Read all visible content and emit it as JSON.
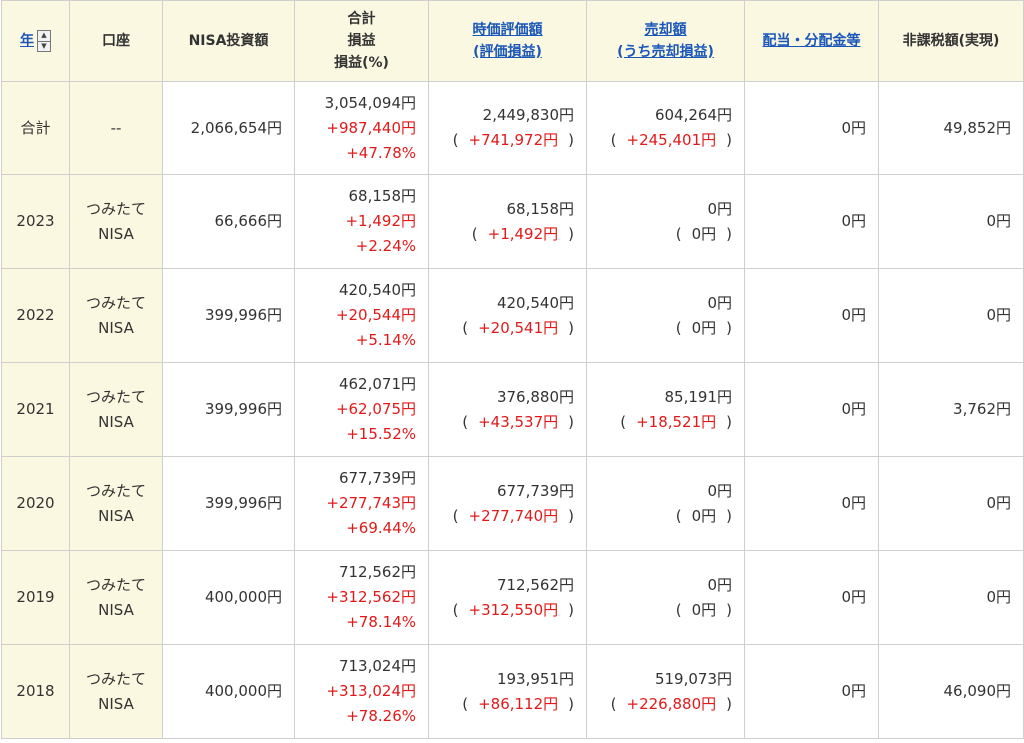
{
  "header": {
    "year": "年",
    "account": "口座",
    "investment": "NISA投資額",
    "total_line1": "合計",
    "total_line2": "損益",
    "total_line3": "損益(%)",
    "market_line1": "時価評価額",
    "market_line2": "(評価損益)",
    "sale_line1": "売却額",
    "sale_line2": "(うち売却損益)",
    "dividend": "配当・分配金等",
    "taxfree": "非課税額(実現)"
  },
  "paren_open": "(",
  "paren_close": ")",
  "rows": [
    {
      "year": "合計",
      "acct1": "--",
      "acct2": "",
      "investment": "2,066,654円",
      "total": "3,054,094円",
      "pl": "+987,440円",
      "pct": "+47.78%",
      "market": "2,449,830円",
      "market_pl": "+741,972円",
      "sale": "604,264円",
      "sale_pl": "+245,401円",
      "dividend": "0円",
      "taxfree": "49,852円"
    },
    {
      "year": "2023",
      "acct1": "つみたて",
      "acct2": "NISA",
      "investment": "66,666円",
      "total": "68,158円",
      "pl": "+1,492円",
      "pct": "+2.24%",
      "market": "68,158円",
      "market_pl": "+1,492円",
      "sale": "0円",
      "sale_pl": "0円",
      "dividend": "0円",
      "taxfree": "0円"
    },
    {
      "year": "2022",
      "acct1": "つみたて",
      "acct2": "NISA",
      "investment": "399,996円",
      "total": "420,540円",
      "pl": "+20,544円",
      "pct": "+5.14%",
      "market": "420,540円",
      "market_pl": "+20,541円",
      "sale": "0円",
      "sale_pl": "0円",
      "dividend": "0円",
      "taxfree": "0円"
    },
    {
      "year": "2021",
      "acct1": "つみたて",
      "acct2": "NISA",
      "investment": "399,996円",
      "total": "462,071円",
      "pl": "+62,075円",
      "pct": "+15.52%",
      "market": "376,880円",
      "market_pl": "+43,537円",
      "sale": "85,191円",
      "sale_pl": "+18,521円",
      "dividend": "0円",
      "taxfree": "3,762円"
    },
    {
      "year": "2020",
      "acct1": "つみたて",
      "acct2": "NISA",
      "investment": "399,996円",
      "total": "677,739円",
      "pl": "+277,743円",
      "pct": "+69.44%",
      "market": "677,739円",
      "market_pl": "+277,740円",
      "sale": "0円",
      "sale_pl": "0円",
      "dividend": "0円",
      "taxfree": "0円"
    },
    {
      "year": "2019",
      "acct1": "つみたて",
      "acct2": "NISA",
      "investment": "400,000円",
      "total": "712,562円",
      "pl": "+312,562円",
      "pct": "+78.14%",
      "market": "712,562円",
      "market_pl": "+312,550円",
      "sale": "0円",
      "sale_pl": "0円",
      "dividend": "0円",
      "taxfree": "0円"
    },
    {
      "year": "2018",
      "acct1": "つみたて",
      "acct2": "NISA",
      "investment": "400,000円",
      "total": "713,024円",
      "pl": "+313,024円",
      "pct": "+78.26%",
      "market": "193,951円",
      "market_pl": "+86,112円",
      "sale": "519,073円",
      "sale_pl": "+226,880円",
      "dividend": "0円",
      "taxfree": "46,090円"
    }
  ],
  "colors": {
    "header_bg": "#fbf8e2",
    "link": "#1a57b8",
    "gain": "#e31919",
    "border": "#cfcfcf"
  },
  "icons": {
    "sort": "sort-updown-icon"
  }
}
